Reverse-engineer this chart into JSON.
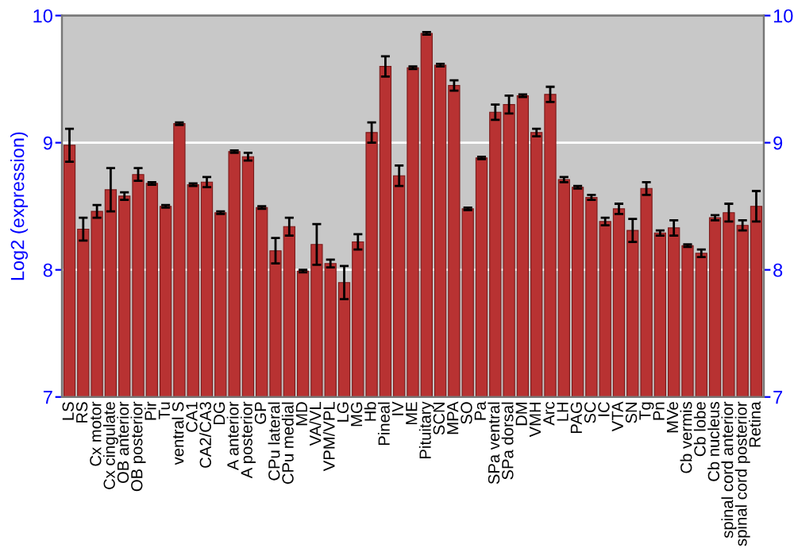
{
  "chart_data": {
    "type": "bar",
    "ylabel": "Log2 (expression)",
    "categories": [
      "LS",
      "RS",
      "Cx motor",
      "Cx cingulate",
      "OB anterior",
      "OB posterior",
      "Pir",
      "Tu",
      "ventral S",
      "CA1",
      "CA2/CA3",
      "DG",
      "A anterior",
      "A posterior",
      "GP",
      "CPu lateral",
      "CPu medial",
      "MD",
      "VA/VL",
      "VPM/VPL",
      "LG",
      "MG",
      "Hb",
      "Pineal",
      "IV",
      "ME",
      "Pituitary",
      "SCN",
      "MPA",
      "SO",
      "Pa",
      "SPa ventral",
      "SPa dorsal",
      "DM",
      "VMH",
      "Arc",
      "LH",
      "PAG",
      "SC",
      "IC",
      "VTA",
      "SN",
      "Tg",
      "Pn",
      "MVe",
      "Cb vermis",
      "Cb lobe",
      "Cb nucleus",
      "spinal cord anterior",
      "spinal cord posterior",
      "Retina"
    ],
    "values": [
      8.98,
      8.32,
      8.46,
      8.63,
      8.58,
      8.75,
      8.68,
      8.5,
      9.15,
      8.67,
      8.69,
      8.45,
      8.93,
      8.89,
      8.49,
      8.15,
      8.34,
      7.99,
      8.2,
      8.05,
      7.9,
      8.22,
      9.08,
      9.6,
      8.74,
      9.59,
      9.86,
      9.61,
      9.45,
      8.48,
      8.88,
      9.24,
      9.3,
      9.37,
      9.08,
      9.38,
      8.71,
      8.65,
      8.57,
      8.38,
      8.48,
      8.31,
      8.64,
      8.29,
      8.33,
      8.19,
      8.13,
      8.41,
      8.45,
      8.35,
      8.5
    ],
    "errors": [
      0.13,
      0.09,
      0.05,
      0.17,
      0.03,
      0.05,
      0.01,
      0.01,
      0.01,
      0.01,
      0.04,
      0.01,
      0.01,
      0.03,
      0.01,
      0.1,
      0.07,
      0.01,
      0.16,
      0.03,
      0.13,
      0.06,
      0.08,
      0.08,
      0.08,
      0.01,
      0.01,
      0.01,
      0.04,
      0.01,
      0.01,
      0.06,
      0.07,
      0.01,
      0.03,
      0.06,
      0.02,
      0.01,
      0.02,
      0.03,
      0.04,
      0.09,
      0.05,
      0.02,
      0.06,
      0.01,
      0.03,
      0.02,
      0.07,
      0.04,
      0.12
    ],
    "color": "#b83232",
    "ylim": [
      7,
      10
    ],
    "yticks": [
      7,
      8,
      9,
      10
    ],
    "y2lim": [
      7,
      10
    ],
    "y2ticks": [
      7,
      8,
      9,
      10
    ],
    "grid": "y"
  }
}
